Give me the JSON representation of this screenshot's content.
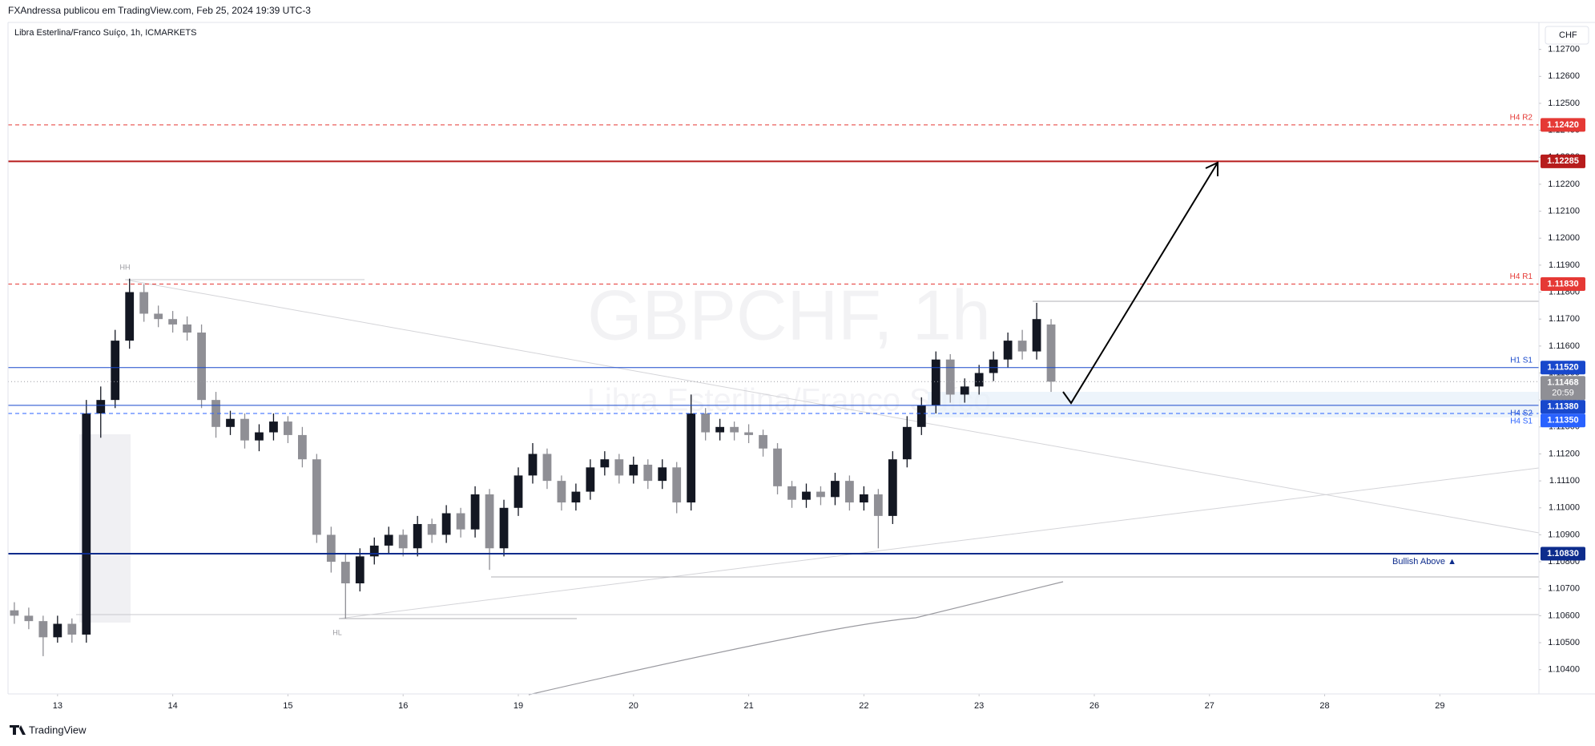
{
  "header": "FXAndressa publicou em TradingView.com, Feb 25, 2024 19:39 UTC-3",
  "footer": "TradingView",
  "chart_data": {
    "type": "candlestick",
    "title": "Libra Esterlina/Franco Suíço, 1h, ICMARKETS",
    "watermark": "GBPCHF, 1h",
    "watermark_subtitle": "Libra Esterlina/Franco Suíço",
    "currency": "CHF",
    "up_color": "#131722",
    "down_color": "#8f8f95",
    "x": [
      -0.375,
      -0.25,
      -0.125,
      0,
      0.125,
      0.25,
      0.375,
      0.5,
      0.625,
      0.75,
      0.875,
      1,
      1.125,
      1.25,
      1.375,
      1.5,
      1.625,
      1.75,
      1.875,
      2,
      2.125,
      2.25,
      2.375,
      2.5,
      2.625,
      2.75,
      2.875,
      3,
      3.125,
      3.25,
      3.375,
      3.5,
      3.625,
      3.75,
      3.875,
      4,
      4.125,
      4.25,
      4.375,
      4.5,
      4.625,
      4.75,
      4.875,
      5,
      5.125,
      5.25,
      5.375,
      5.5,
      5.625,
      5.75,
      5.875,
      6,
      6.125,
      6.25,
      6.375,
      6.5,
      6.625,
      6.75,
      6.875,
      7,
      7.125,
      7.25,
      7.375,
      7.5,
      7.625,
      7.75,
      7.875,
      8,
      8.125,
      8.25,
      8.375,
      8.5,
      8.625
    ],
    "open": [
      1.1062,
      1.106,
      1.1058,
      1.1052,
      1.1057,
      1.1053,
      1.1135,
      1.114,
      1.1162,
      1.118,
      1.1172,
      1.117,
      1.1168,
      1.1165,
      1.114,
      1.113,
      1.1133,
      1.1125,
      1.1128,
      1.1132,
      1.1127,
      1.1118,
      1.109,
      1.108,
      1.1072,
      1.1082,
      1.1086,
      1.109,
      1.1085,
      1.1094,
      1.109,
      1.1098,
      1.1092,
      1.1105,
      1.1085,
      1.11,
      1.1112,
      1.112,
      1.111,
      1.1102,
      1.1106,
      1.1115,
      1.1118,
      1.1112,
      1.1116,
      1.111,
      1.1115,
      1.1102,
      1.1135,
      1.1128,
      1.113,
      1.1128,
      1.1127,
      1.1122,
      1.1108,
      1.1103,
      1.1106,
      1.1104,
      1.111,
      1.1102,
      1.1105,
      1.1097,
      1.1118,
      1.113,
      1.1138,
      1.1155,
      1.1142,
      1.1145,
      1.115,
      1.1155,
      1.1162,
      1.1158,
      1.1168
    ],
    "high": [
      1.1065,
      1.1063,
      1.106,
      1.106,
      1.1059,
      1.114,
      1.1145,
      1.1166,
      1.1185,
      1.1183,
      1.1175,
      1.1173,
      1.1171,
      1.1168,
      1.1143,
      1.1136,
      1.1135,
      1.1131,
      1.1135,
      1.1134,
      1.113,
      1.112,
      1.1093,
      1.1083,
      1.1085,
      1.1089,
      1.1093,
      1.1092,
      1.1097,
      1.1096,
      1.1101,
      1.11,
      1.1108,
      1.1107,
      1.1103,
      1.1115,
      1.1124,
      1.1122,
      1.1112,
      1.1109,
      1.1118,
      1.1121,
      1.112,
      1.1119,
      1.1118,
      1.1118,
      1.1117,
      1.1142,
      1.1137,
      1.1133,
      1.1132,
      1.1131,
      1.1129,
      1.1124,
      1.111,
      1.1109,
      1.1108,
      1.1113,
      1.1112,
      1.1108,
      1.1107,
      1.1121,
      1.1134,
      1.1141,
      1.1158,
      1.1157,
      1.1148,
      1.1153,
      1.1158,
      1.1165,
      1.1166,
      1.1176,
      1.117
    ],
    "low": [
      1.1057,
      1.1055,
      1.1045,
      1.105,
      1.105,
      1.105,
      1.1126,
      1.1137,
      1.1159,
      1.1169,
      1.1167,
      1.1165,
      1.1162,
      1.1137,
      1.1126,
      1.1127,
      1.1122,
      1.1121,
      1.1125,
      1.1124,
      1.1115,
      1.1087,
      1.1076,
      1.1059,
      1.1069,
      1.1079,
      1.1083,
      1.1082,
      1.1082,
      1.1087,
      1.1087,
      1.1089,
      1.1089,
      1.1077,
      1.1082,
      1.1097,
      1.1109,
      1.1107,
      1.1099,
      1.1099,
      1.1103,
      1.1112,
      1.1109,
      1.1109,
      1.1107,
      1.1107,
      1.1098,
      1.1099,
      1.1125,
      1.1125,
      1.1125,
      1.1124,
      1.1119,
      1.1105,
      1.11,
      1.11,
      1.1101,
      1.1101,
      1.1099,
      1.1099,
      1.1085,
      1.1094,
      1.1115,
      1.1127,
      1.1135,
      1.1139,
      1.1139,
      1.1142,
      1.1147,
      1.1152,
      1.1155,
      1.1155,
      1.1143
    ],
    "close": [
      1.106,
      1.1058,
      1.1052,
      1.1057,
      1.1053,
      1.1135,
      1.114,
      1.1162,
      1.118,
      1.1172,
      1.117,
      1.1168,
      1.1165,
      1.114,
      1.113,
      1.1133,
      1.1125,
      1.1128,
      1.1132,
      1.1127,
      1.1118,
      1.109,
      1.108,
      1.1072,
      1.1082,
      1.1086,
      1.109,
      1.1085,
      1.1094,
      1.109,
      1.1098,
      1.1092,
      1.1105,
      1.1085,
      1.11,
      1.1112,
      1.112,
      1.111,
      1.1102,
      1.1106,
      1.1115,
      1.1118,
      1.1112,
      1.1116,
      1.111,
      1.1115,
      1.1102,
      1.1135,
      1.1128,
      1.113,
      1.1128,
      1.1127,
      1.1122,
      1.1108,
      1.1103,
      1.1106,
      1.1104,
      1.111,
      1.1102,
      1.1105,
      1.1097,
      1.1118,
      1.113,
      1.1138,
      1.1155,
      1.1142,
      1.1145,
      1.115,
      1.1155,
      1.1162,
      1.1158,
      1.117,
      1.11468
    ],
    "xlim": [
      -0.43,
      12.86
    ],
    "xticks": [
      {
        "value": 0,
        "label": "13"
      },
      {
        "value": 1,
        "label": "14"
      },
      {
        "value": 2,
        "label": "15"
      },
      {
        "value": 3,
        "label": "16"
      },
      {
        "value": 4,
        "label": "19"
      },
      {
        "value": 5,
        "label": "20"
      },
      {
        "value": 6,
        "label": "21"
      },
      {
        "value": 7,
        "label": "22"
      },
      {
        "value": 8,
        "label": "23"
      },
      {
        "value": 9,
        "label": "26"
      },
      {
        "value": 10,
        "label": "27"
      },
      {
        "value": 11,
        "label": "28"
      },
      {
        "value": 12,
        "label": "29"
      }
    ],
    "ylim": [
      1.1031,
      1.128
    ],
    "yticks": [
      {
        "value": 1.104,
        "label": "1.10400"
      },
      {
        "value": 1.105,
        "label": "1.10500"
      },
      {
        "value": 1.106,
        "label": "1.10600"
      },
      {
        "value": 1.107,
        "label": "1.10700"
      },
      {
        "value": 1.108,
        "label": "1.10800"
      },
      {
        "value": 1.109,
        "label": "1.10900"
      },
      {
        "value": 1.11,
        "label": "1.11000"
      },
      {
        "value": 1.111,
        "label": "1.11100"
      },
      {
        "value": 1.112,
        "label": "1.11200"
      },
      {
        "value": 1.113,
        "label": "1.11300"
      },
      {
        "value": 1.114,
        "label": "1.11400"
      },
      {
        "value": 1.115,
        "label": "1.11500"
      },
      {
        "value": 1.116,
        "label": "1.11600"
      },
      {
        "value": 1.117,
        "label": "1.11700"
      },
      {
        "value": 1.118,
        "label": "1.11800"
      },
      {
        "value": 1.119,
        "label": "1.11900"
      },
      {
        "value": 1.12,
        "label": "1.12000"
      },
      {
        "value": 1.121,
        "label": "1.12100"
      },
      {
        "value": 1.122,
        "label": "1.12200"
      },
      {
        "value": 1.123,
        "label": "1.12300"
      },
      {
        "value": 1.124,
        "label": "1.12400"
      },
      {
        "value": 1.125,
        "label": "1.12500"
      },
      {
        "value": 1.126,
        "label": "1.12600"
      },
      {
        "value": 1.127,
        "label": "1.12700"
      }
    ],
    "levels": [
      {
        "value": 1.1242,
        "label": "1.12420",
        "name": "H4 R2",
        "color": "#e53935",
        "style": "dashed",
        "width": 1
      },
      {
        "value": 1.12285,
        "label": "1.12285",
        "color": "#b71c1c",
        "style": "solid",
        "width": 2
      },
      {
        "value": 1.1183,
        "label": "1.11830",
        "name": "H4 R1",
        "color": "#e53935",
        "style": "dashed",
        "width": 1
      },
      {
        "value": 1.1152,
        "label": "1.11520",
        "name": "H1 S1",
        "color": "#1848cc",
        "style": "solid",
        "width": 1
      },
      {
        "value": 1.1138,
        "label": "1.11380",
        "name": "H4 S2",
        "color": "#1848cc",
        "style": "solid",
        "width": 1
      },
      {
        "value": 1.1135,
        "label": "1.11350",
        "name": "H4 S1",
        "color": "#2962ff",
        "style": "dashed",
        "width": 1
      },
      {
        "value": 1.1083,
        "label": "1.10830",
        "name": "Bullish Above ▲",
        "color": "#0d2c8c",
        "style": "solid",
        "width": 2
      }
    ],
    "last_price": {
      "value": 1.11468,
      "label": "1.11468",
      "countdown": "20:59"
    },
    "annotations": [
      "HH",
      "HL"
    ]
  }
}
